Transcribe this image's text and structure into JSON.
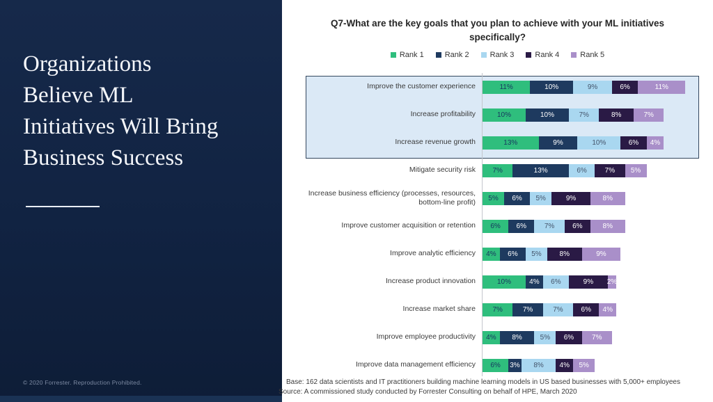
{
  "slide": {
    "left_panel": {
      "title_lines": [
        "Organizations",
        "Believe ML",
        "Initiatives Will Bring",
        "Business Success"
      ],
      "copyright": "© 2020 Forrester. Reproduction Prohibited.",
      "background_color": "#112342"
    },
    "footnote_lines": [
      "Base: 162 data scientists and IT practitioners building machine learning models in US based businesses with 5,000+ employees",
      "Source: A commissioned study conducted by Forrester Consulting on behalf of HPE, March 2020"
    ]
  },
  "chart_data": {
    "type": "bar",
    "orientation": "horizontal",
    "stacked": true,
    "unit": "%",
    "title_lines": [
      "Q7-What are the key goals that you plan to achieve with your ML initiatives",
      "specifically?"
    ],
    "title": "Q7-What are the key goals that you plan to achieve with your ML initiatives specifically?",
    "legend_position": "top",
    "grid": false,
    "xlim": [
      0,
      47
    ],
    "categories": [
      "Improve the customer experience",
      "Increase profitability",
      "Increase revenue growth",
      "Mitigate security risk",
      "Increase business efficiency (processes, resources, bottom-line profit)",
      "Improve customer acquisition or retention",
      "Improve analytic efficiency",
      "Increase product innovation",
      "Increase market share",
      "Improve employee productivity",
      "Improve data management efficiency"
    ],
    "highlighted_categories": [
      "Improve the customer experience",
      "Increase profitability",
      "Increase revenue growth"
    ],
    "series": [
      {
        "name": "Rank 1",
        "color": "#2fbe7d",
        "label_color": "#17355e",
        "values": [
          11,
          10,
          13,
          7,
          5,
          6,
          4,
          10,
          7,
          4,
          6
        ]
      },
      {
        "name": "Rank 2",
        "color": "#1e3a5f",
        "label_color": "#ffffff",
        "values": [
          10,
          10,
          9,
          13,
          6,
          6,
          6,
          4,
          7,
          8,
          3
        ]
      },
      {
        "name": "Rank 3",
        "color": "#a9d7f0",
        "label_color": "#44546a",
        "values": [
          9,
          7,
          10,
          6,
          5,
          7,
          5,
          6,
          7,
          5,
          8
        ]
      },
      {
        "name": "Rank 4",
        "color": "#2a1a45",
        "label_color": "#ffffff",
        "values": [
          6,
          8,
          6,
          7,
          9,
          6,
          8,
          9,
          6,
          6,
          4
        ]
      },
      {
        "name": "Rank 5",
        "color": "#a98fc9",
        "label_color": "#ffffff",
        "values": [
          11,
          7,
          4,
          5,
          8,
          8,
          9,
          2,
          4,
          7,
          5
        ]
      }
    ],
    "highlight_box_color": "#dbe9f6",
    "highlight_border_color": "#33475e"
  }
}
